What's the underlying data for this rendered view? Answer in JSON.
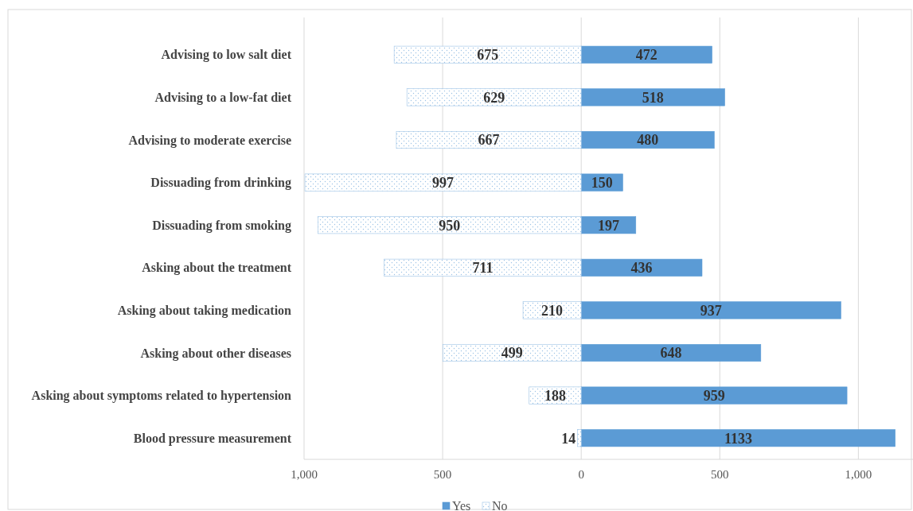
{
  "chart_data": {
    "type": "bar",
    "orientation": "horizontal",
    "categories": [
      "Advising to low salt diet",
      "Advising to a low-fat diet",
      "Advising to moderate exercise",
      "Dissuading from drinking",
      "Dissuading from smoking",
      "Asking about the treatment",
      "Asking about taking medication",
      "Asking about other diseases",
      "Asking about symptoms related to hypertension",
      "Blood pressure measurement"
    ],
    "series": [
      {
        "name": "Yes",
        "color": "#5b9bd5",
        "values": [
          472,
          518,
          480,
          150,
          197,
          436,
          937,
          648,
          959,
          1133
        ],
        "base": [
          0,
          0,
          0,
          0,
          0,
          0,
          0,
          0,
          0,
          0
        ]
      },
      {
        "name": "No",
        "color": "#9dc3e6",
        "values": [
          675,
          629,
          667,
          997,
          950,
          711,
          210,
          499,
          188,
          14
        ],
        "base": [
          -675,
          -629,
          -667,
          -997,
          -950,
          -711,
          -210,
          -499,
          -188,
          -14
        ]
      }
    ],
    "data_labels": true,
    "xlim": [
      -1000,
      1200
    ],
    "xticks": [
      {
        "value": -1000,
        "label": "1,000"
      },
      {
        "value": -500,
        "label": "500"
      },
      0,
      500,
      {
        "value": 1000,
        "label": "1,000"
      }
    ],
    "grid": "x",
    "legend": "bottom"
  }
}
